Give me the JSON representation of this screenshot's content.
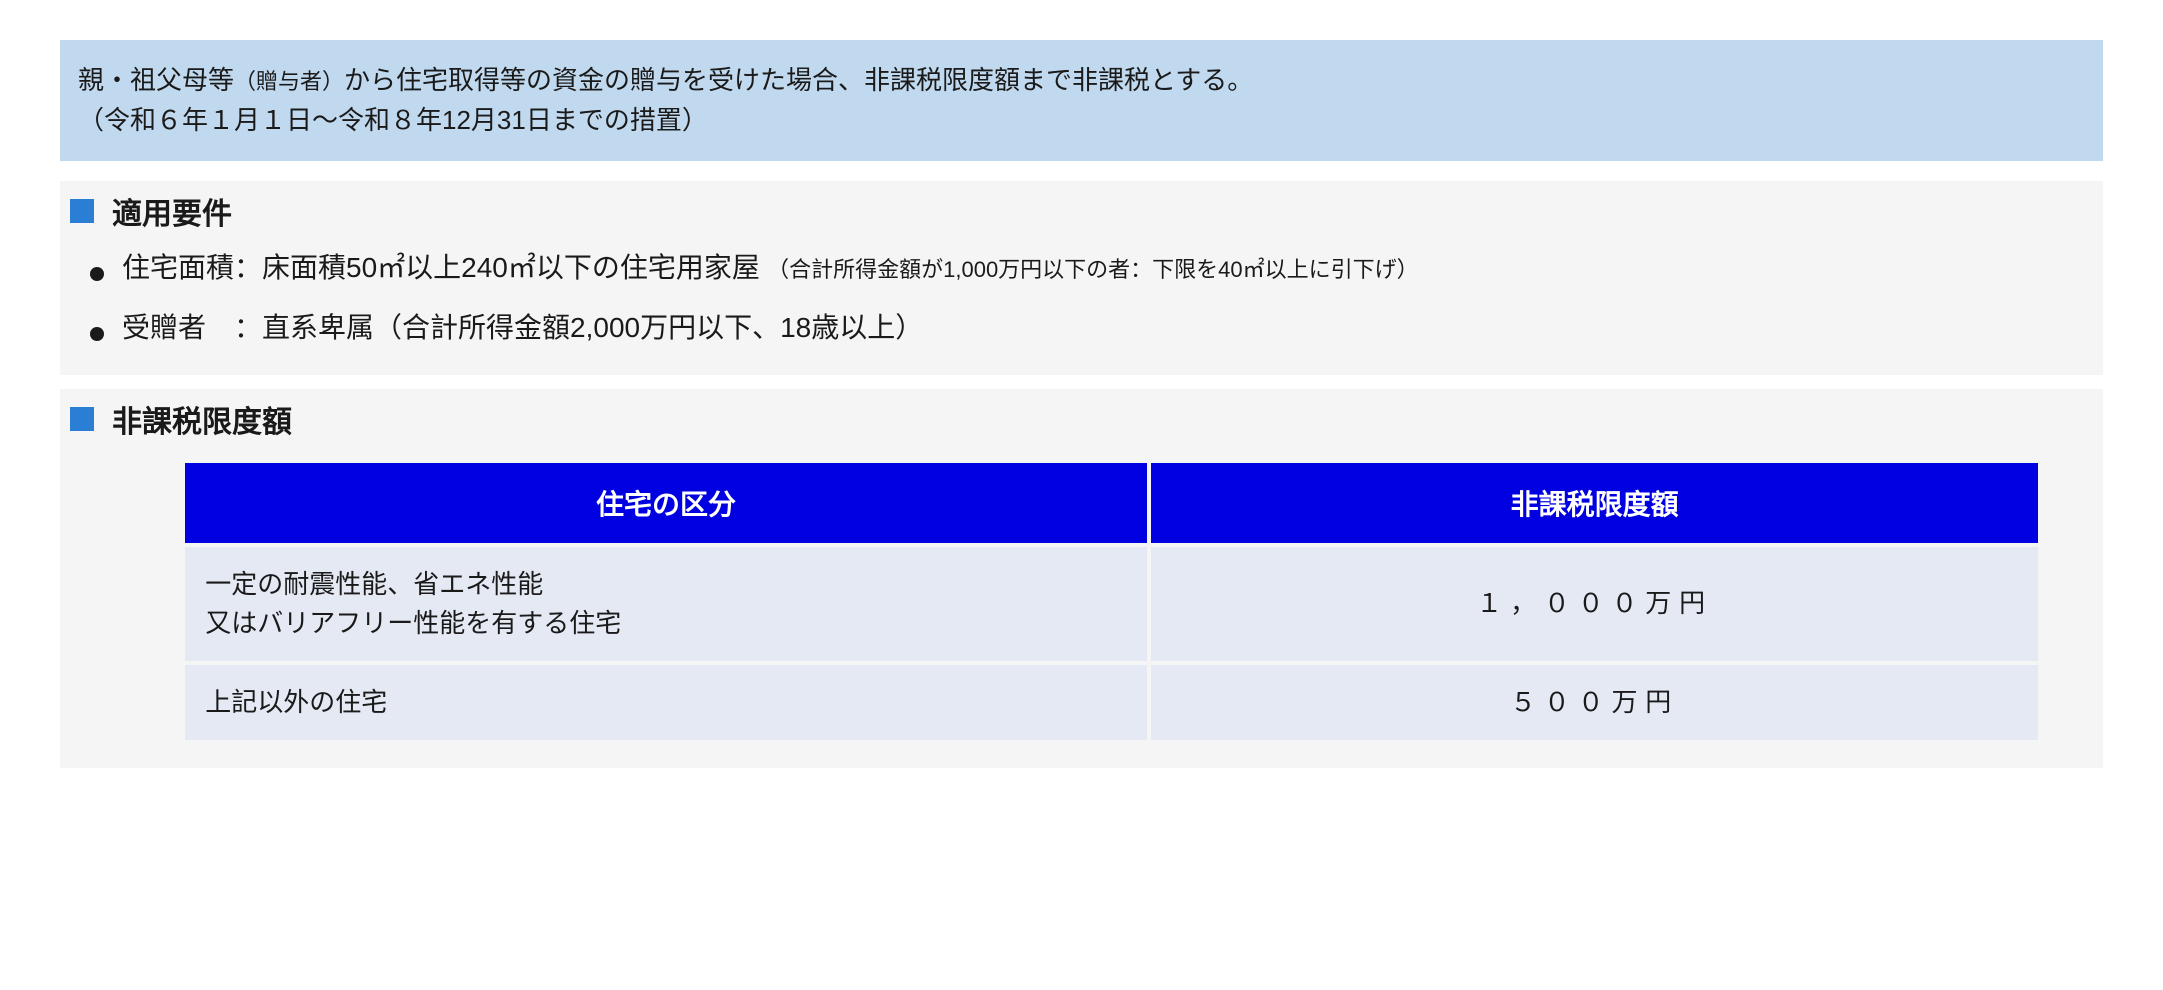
{
  "banner": {
    "line1_prefix": "親・祖父母等",
    "line1_sub": "（贈与者）",
    "line1_suffix": "から住宅取得等の資金の贈与を受けた場合、非課税限度額まで非課税とする。",
    "line2": "（令和６年１月１日〜令和８年12月31日までの措置）",
    "background_color": "#c1d9ef",
    "text_color": "#1a1a1a"
  },
  "sections": {
    "requirements": {
      "title": "適用要件",
      "bullet_color": "#2a7fd4",
      "items": [
        {
          "label": "住宅面積：",
          "main": "床面積50㎡以上240㎡以下の住宅用家屋",
          "note": "（合計所得金額が1,000万円以下の者：下限を40㎡以上に引下げ）"
        },
        {
          "label": "受贈者　：",
          "main": "直系卑属（合計所得金額2,000万円以下、18歳以上）",
          "note": ""
        }
      ]
    },
    "limits": {
      "title": "非課税限度額",
      "bullet_color": "#2a7fd4",
      "table": {
        "columns": [
          "住宅の区分",
          "非課税限度額"
        ],
        "header_bg": "#0000e0",
        "header_fg": "#ffffff",
        "cell_bg": "#e5e9f4",
        "rows": [
          {
            "category": "一定の耐震性能、省エネ性能\n又はバリアフリー性能を有する住宅",
            "amount": "１，０００万円"
          },
          {
            "category": "上記以外の住宅",
            "amount": "５００万円"
          }
        ]
      }
    }
  }
}
